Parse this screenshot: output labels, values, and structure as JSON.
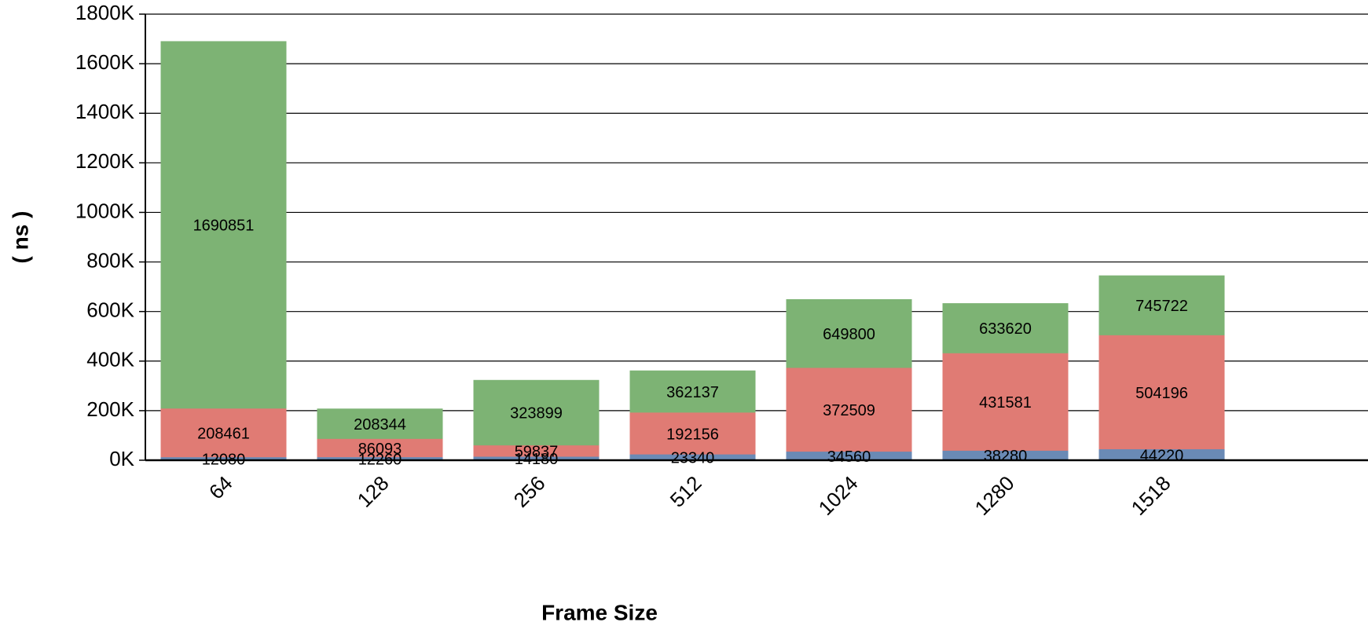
{
  "chart_data": {
    "type": "bar",
    "overlap": true,
    "x_label": "Frame Size",
    "y_label": "( ns )",
    "categories": [
      "64",
      "128",
      "256",
      "512",
      "1024",
      "1280",
      "1518"
    ],
    "series": [
      {
        "color": "#6a8ab5",
        "values": [
          12080,
          12260,
          14180,
          23340,
          34560,
          38280,
          44220
        ]
      },
      {
        "color": "#e07b74",
        "values": [
          208461,
          86093,
          59837,
          192156,
          372509,
          431581,
          504196
        ]
      },
      {
        "color": "#7db374",
        "values": [
          1690851,
          208344,
          323899,
          362137,
          649800,
          633620,
          745722
        ]
      }
    ],
    "ylim": [
      0,
      1800000
    ],
    "yticks": [
      {
        "value": 0,
        "label": "0K"
      },
      {
        "value": 200000,
        "label": "200K"
      },
      {
        "value": 400000,
        "label": "400K"
      },
      {
        "value": 600000,
        "label": "600K"
      },
      {
        "value": 800000,
        "label": "800K"
      },
      {
        "value": 1000000,
        "label": "1000K"
      },
      {
        "value": 1200000,
        "label": "1200K"
      },
      {
        "value": 1400000,
        "label": "1400K"
      },
      {
        "value": 1600000,
        "label": "1600K"
      },
      {
        "value": 1800000,
        "label": "1800K"
      }
    ],
    "grid": true
  }
}
